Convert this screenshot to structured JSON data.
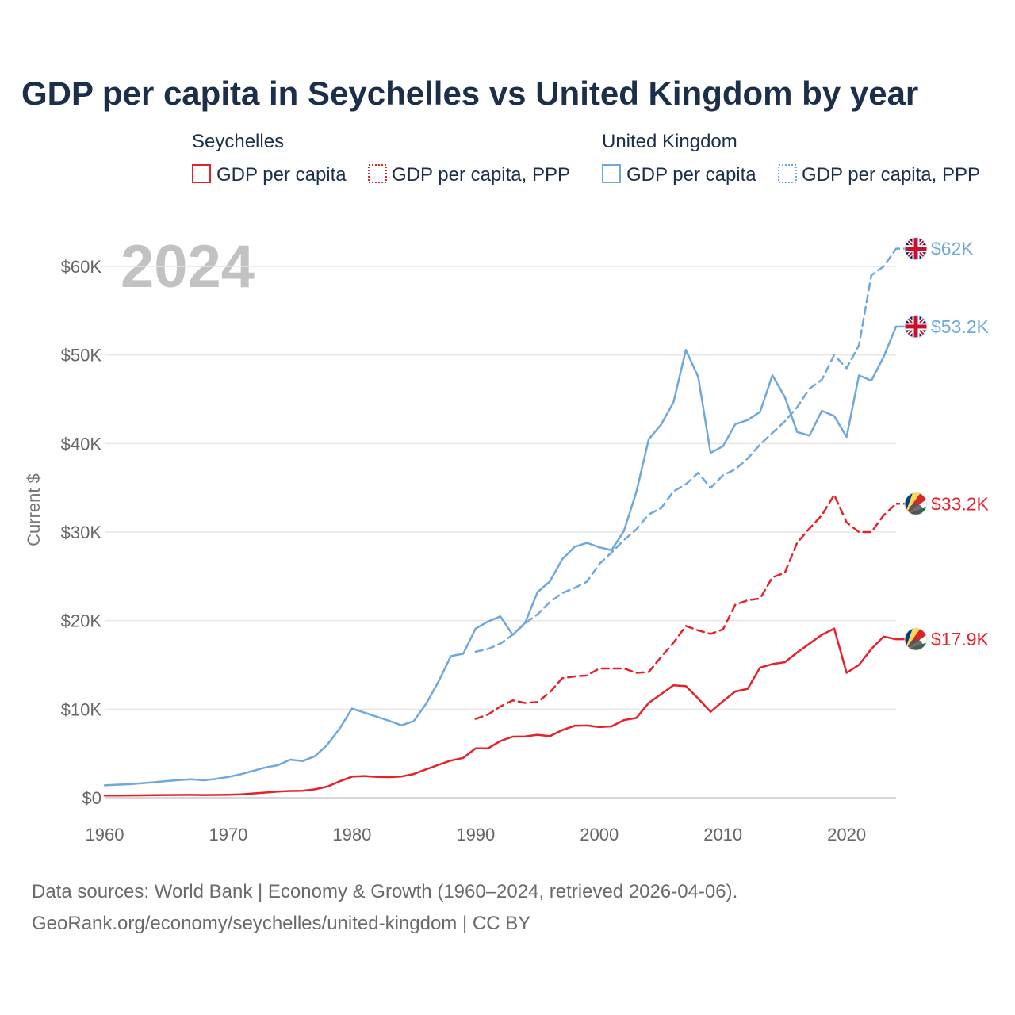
{
  "colors": {
    "seychelles": "#e8202a",
    "united_kingdom": "#6fa8dc",
    "grid": "#e6e6e6",
    "axis": "#cccccc"
  },
  "legend": {
    "seychelles": {
      "title": "Seychelles",
      "items": [
        "GDP per capita",
        "GDP per capita, PPP"
      ]
    },
    "united_kingdom": {
      "title": "United Kingdom",
      "items": [
        "GDP per capita",
        "GDP per capita, PPP"
      ]
    }
  },
  "year_label": "2024",
  "source": {
    "line1": "Data sources: World Bank | Economy & Growth (1960–2024, retrieved 2026-04-06).",
    "line2": "GeoRank.org/economy/seychelles/united-kingdom | CC BY"
  },
  "chart_data": {
    "type": "line",
    "title": "GDP per capita in Seychelles vs United Kingdom by year",
    "xlabel": "",
    "ylabel": "Current $",
    "xlim": [
      1960,
      2024
    ],
    "ylim": [
      0,
      65000
    ],
    "x_ticks": [
      1960,
      1970,
      1980,
      1990,
      2000,
      2010,
      2020
    ],
    "x_tick_labels": [
      "1960",
      "1970",
      "1980",
      "1990",
      "2000",
      "2010",
      "2020"
    ],
    "y_ticks": [
      0,
      10000,
      20000,
      30000,
      40000,
      50000,
      60000
    ],
    "y_tick_labels": [
      "$0",
      "$10K",
      "$20K",
      "$30K",
      "$40K",
      "$50K",
      "$60K"
    ],
    "series": [
      {
        "name": "United Kingdom GDP per capita",
        "country": "united_kingdom",
        "style": "solid",
        "end_label": "$53.2K",
        "x_start": 1960,
        "values": [
          1400,
          1470,
          1520,
          1630,
          1750,
          1880,
          2000,
          2080,
          1970,
          2130,
          2350,
          2650,
          3030,
          3420,
          3670,
          4300,
          4140,
          4680,
          5970,
          7800,
          10070,
          9610,
          9150,
          8690,
          8180,
          8650,
          10610,
          13120,
          15990,
          16260,
          19100,
          19900,
          20480,
          18390,
          19750,
          23210,
          24430,
          26930,
          28330,
          28780,
          28280,
          27960,
          30140,
          34540,
          40490,
          42140,
          44650,
          50570,
          47520,
          38950,
          39690,
          42190,
          42650,
          43580,
          47710,
          45260,
          41300,
          40900,
          43700,
          43100,
          40750,
          47700,
          47100,
          49800,
          53200
        ]
      },
      {
        "name": "United Kingdom GDP per capita, PPP",
        "country": "united_kingdom",
        "style": "dashed",
        "end_label": "$62K",
        "x_start": 1990,
        "values": [
          16500,
          16800,
          17400,
          18400,
          19700,
          20700,
          22100,
          23100,
          23700,
          24400,
          26400,
          27700,
          29100,
          30300,
          32000,
          32700,
          34600,
          35400,
          36700,
          35000,
          36400,
          37100,
          38300,
          39900,
          41200,
          42500,
          44100,
          46200,
          47200,
          50000,
          48500,
          51100,
          59000,
          60000,
          62000
        ]
      },
      {
        "name": "Seychelles GDP per capita",
        "country": "seychelles",
        "style": "solid",
        "end_label": "$17.9K",
        "x_start": 1960,
        "values": [
          250,
          255,
          260,
          270,
          285,
          300,
          310,
          320,
          300,
          310,
          340,
          380,
          480,
          580,
          690,
          760,
          780,
          950,
          1250,
          1850,
          2380,
          2450,
          2350,
          2330,
          2400,
          2680,
          3210,
          3720,
          4200,
          4500,
          5580,
          5570,
          6400,
          6900,
          6920,
          7110,
          6950,
          7640,
          8120,
          8160,
          7980,
          8060,
          8770,
          9010,
          10710,
          11700,
          12700,
          12600,
          11200,
          9700,
          10900,
          12000,
          12300,
          14700,
          15100,
          15300,
          16400,
          17400,
          18400,
          19100,
          14100,
          15000,
          16800,
          18200,
          17900
        ]
      },
      {
        "name": "Seychelles GDP per capita, PPP",
        "country": "seychelles",
        "style": "dashed",
        "end_label": "$33.2K",
        "x_start": 1990,
        "values": [
          8900,
          9400,
          10300,
          11000,
          10700,
          10800,
          11900,
          13500,
          13700,
          13800,
          14600,
          14600,
          14600,
          14100,
          14200,
          15900,
          17500,
          19400,
          18900,
          18500,
          19000,
          21800,
          22300,
          22500,
          24900,
          25400,
          28800,
          30400,
          31900,
          34200,
          31100,
          30000,
          30000,
          31900,
          33200
        ]
      }
    ]
  }
}
